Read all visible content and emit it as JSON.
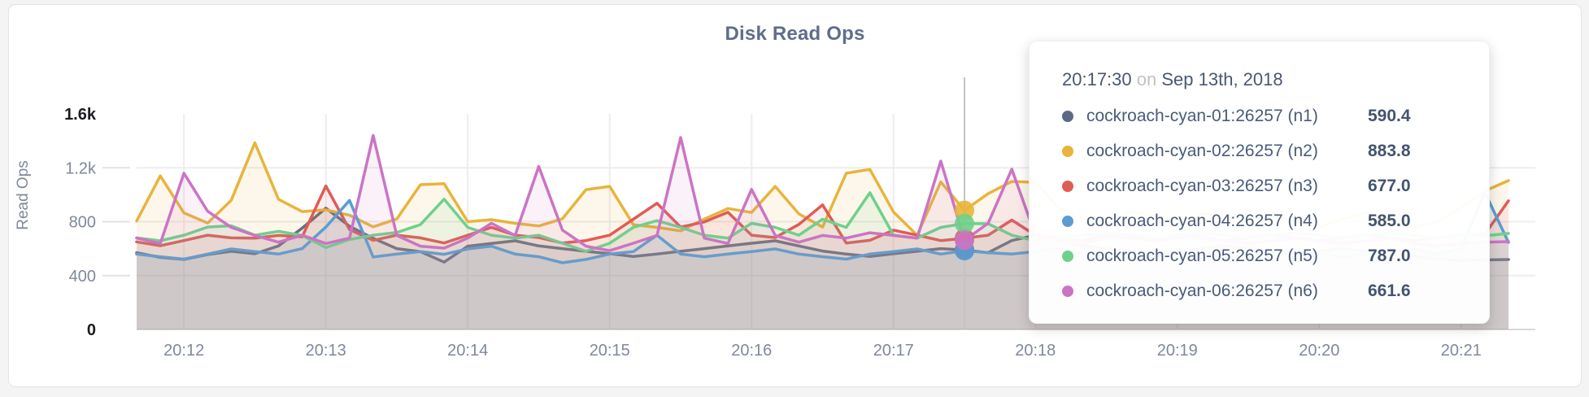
{
  "card": {
    "title": "Disk Read Ops"
  },
  "tooltip": {
    "time": "20:17:30",
    "connector": "on",
    "date": "Sep 13th, 2018",
    "rows": [
      {
        "label": "cockroach-cyan-01:26257 (n1)",
        "value": "590.4",
        "color": "#5a6987"
      },
      {
        "label": "cockroach-cyan-02:26257 (n2)",
        "value": "883.8",
        "color": "#e8b43c"
      },
      {
        "label": "cockroach-cyan-03:26257 (n3)",
        "value": "677.0",
        "color": "#df5c55"
      },
      {
        "label": "cockroach-cyan-04:26257 (n4)",
        "value": "585.0",
        "color": "#5c9cd3"
      },
      {
        "label": "cockroach-cyan-05:26257 (n5)",
        "value": "787.0",
        "color": "#6fd08c"
      },
      {
        "label": "cockroach-cyan-06:26257 (n6)",
        "value": "661.6",
        "color": "#cb74c4"
      }
    ]
  },
  "chart_data": {
    "type": "area",
    "title": "Disk Read Ops",
    "ylabel": "Read Ops",
    "xlabel": "",
    "x_start": "20:11:40",
    "x_step_seconds": 10,
    "ylim": [
      0,
      1880
    ],
    "y_tick_max": 1600,
    "grid": {
      "horizontal": true,
      "vertical": true
    },
    "legend_position": "tooltip",
    "y_ticks": [
      {
        "value": 0,
        "label": "0",
        "emphasis": true
      },
      {
        "value": 400,
        "label": "400",
        "emphasis": false
      },
      {
        "value": 800,
        "label": "800",
        "emphasis": false
      },
      {
        "value": 1200,
        "label": "1.2k",
        "emphasis": false
      },
      {
        "value": 1600,
        "label": "1.6k",
        "emphasis": true
      }
    ],
    "x_ticks": [
      {
        "index": 2,
        "label": "20:12"
      },
      {
        "index": 8,
        "label": "20:13"
      },
      {
        "index": 14,
        "label": "20:14"
      },
      {
        "index": 20,
        "label": "20:15"
      },
      {
        "index": 26,
        "label": "20:16"
      },
      {
        "index": 32,
        "label": "20:17"
      },
      {
        "index": 38,
        "label": "20:18"
      },
      {
        "index": 44,
        "label": "20:19"
      },
      {
        "index": 50,
        "label": "20:20"
      },
      {
        "index": 56,
        "label": "20:21"
      }
    ],
    "hover_index": 35,
    "hover_time": "20:17:30",
    "series": [
      {
        "name": "cockroach-cyan-01:26257 (n1)",
        "color": "#5a6987",
        "values": [
          570,
          535,
          520,
          556,
          580,
          562,
          620,
          752,
          900,
          767,
          677,
          600,
          578,
          500,
          618,
          638,
          658,
          620,
          600,
          580,
          562,
          542,
          560,
          580,
          600,
          620,
          640,
          658,
          620,
          582,
          560,
          542,
          562,
          580,
          600,
          590.4,
          570,
          660,
          700,
          660,
          620,
          600,
          580,
          560,
          580,
          600,
          620,
          600,
          580,
          560,
          580,
          600,
          580,
          560,
          540,
          525,
          512,
          516,
          519
        ]
      },
      {
        "name": "cockroach-cyan-02:26257 (n2)",
        "color": "#e8b43c",
        "values": [
          805,
          1140,
          865,
          790,
          958,
          1385,
          966,
          875,
          888,
          848,
          762,
          820,
          1075,
          1082,
          800,
          815,
          788,
          768,
          822,
          1038,
          1062,
          778,
          758,
          732,
          820,
          898,
          868,
          1062,
          858,
          760,
          1160,
          1188,
          872,
          700,
          1095,
          883.8,
          1008,
          1098,
          1092,
          900,
          820,
          762,
          878,
          840,
          790,
          858,
          828,
          790,
          848,
          800,
          762,
          820,
          868,
          790,
          760,
          800,
          902,
          1028,
          1105
        ]
      },
      {
        "name": "cockroach-cyan-03:26257 (n3)",
        "color": "#df5c55",
        "values": [
          650,
          622,
          660,
          700,
          680,
          678,
          698,
          688,
          1065,
          742,
          662,
          700,
          680,
          642,
          700,
          758,
          700,
          682,
          642,
          660,
          700,
          818,
          937,
          760,
          798,
          870,
          700,
          682,
          780,
          925,
          642,
          662,
          737,
          700,
          660,
          677,
          700,
          812,
          700,
          680,
          660,
          700,
          680,
          660,
          700,
          680,
          660,
          680,
          700,
          680,
          660,
          680,
          700,
          680,
          660,
          680,
          700,
          707,
          955
        ]
      },
      {
        "name": "cockroach-cyan-04:26257 (n4)",
        "color": "#5c9cd3",
        "values": [
          560,
          540,
          522,
          560,
          598,
          578,
          560,
          600,
          760,
          958,
          538,
          560,
          578,
          558,
          598,
          618,
          560,
          540,
          495,
          520,
          560,
          578,
          700,
          560,
          540,
          560,
          578,
          598,
          560,
          540,
          522,
          560,
          578,
          598,
          560,
          585,
          570,
          560,
          578,
          598,
          560,
          540,
          560,
          578,
          598,
          560,
          540,
          560,
          578,
          598,
          560,
          540,
          560,
          578,
          598,
          560,
          600,
          1018,
          646
        ]
      },
      {
        "name": "cockroach-cyan-05:26257 (n5)",
        "color": "#6fd08c",
        "values": [
          680,
          658,
          700,
          760,
          770,
          700,
          728,
          698,
          608,
          668,
          700,
          720,
          778,
          967,
          758,
          700,
          678,
          700,
          640,
          580,
          640,
          758,
          808,
          758,
          700,
          678,
          788,
          758,
          700,
          818,
          758,
          1015,
          700,
          678,
          758,
          787,
          785,
          700,
          658,
          678,
          700,
          718,
          700,
          678,
          700,
          718,
          700,
          678,
          700,
          718,
          700,
          678,
          700,
          718,
          700,
          678,
          700,
          695,
          713
        ]
      },
      {
        "name": "cockroach-cyan-06:26257 (n6)",
        "color": "#cb74c4",
        "values": [
          678,
          638,
          1160,
          878,
          758,
          698,
          648,
          700,
          638,
          678,
          1440,
          698,
          618,
          604,
          678,
          788,
          698,
          1210,
          738,
          618,
          585,
          640,
          698,
          1425,
          678,
          638,
          1040,
          698,
          648,
          698,
          678,
          718,
          698,
          678,
          1250,
          661.6,
          788,
          1190,
          698,
          658,
          638,
          678,
          698,
          658,
          678,
          698,
          658,
          638,
          658,
          678,
          658,
          638,
          658,
          678,
          638,
          618,
          638,
          648,
          652
        ]
      }
    ]
  }
}
